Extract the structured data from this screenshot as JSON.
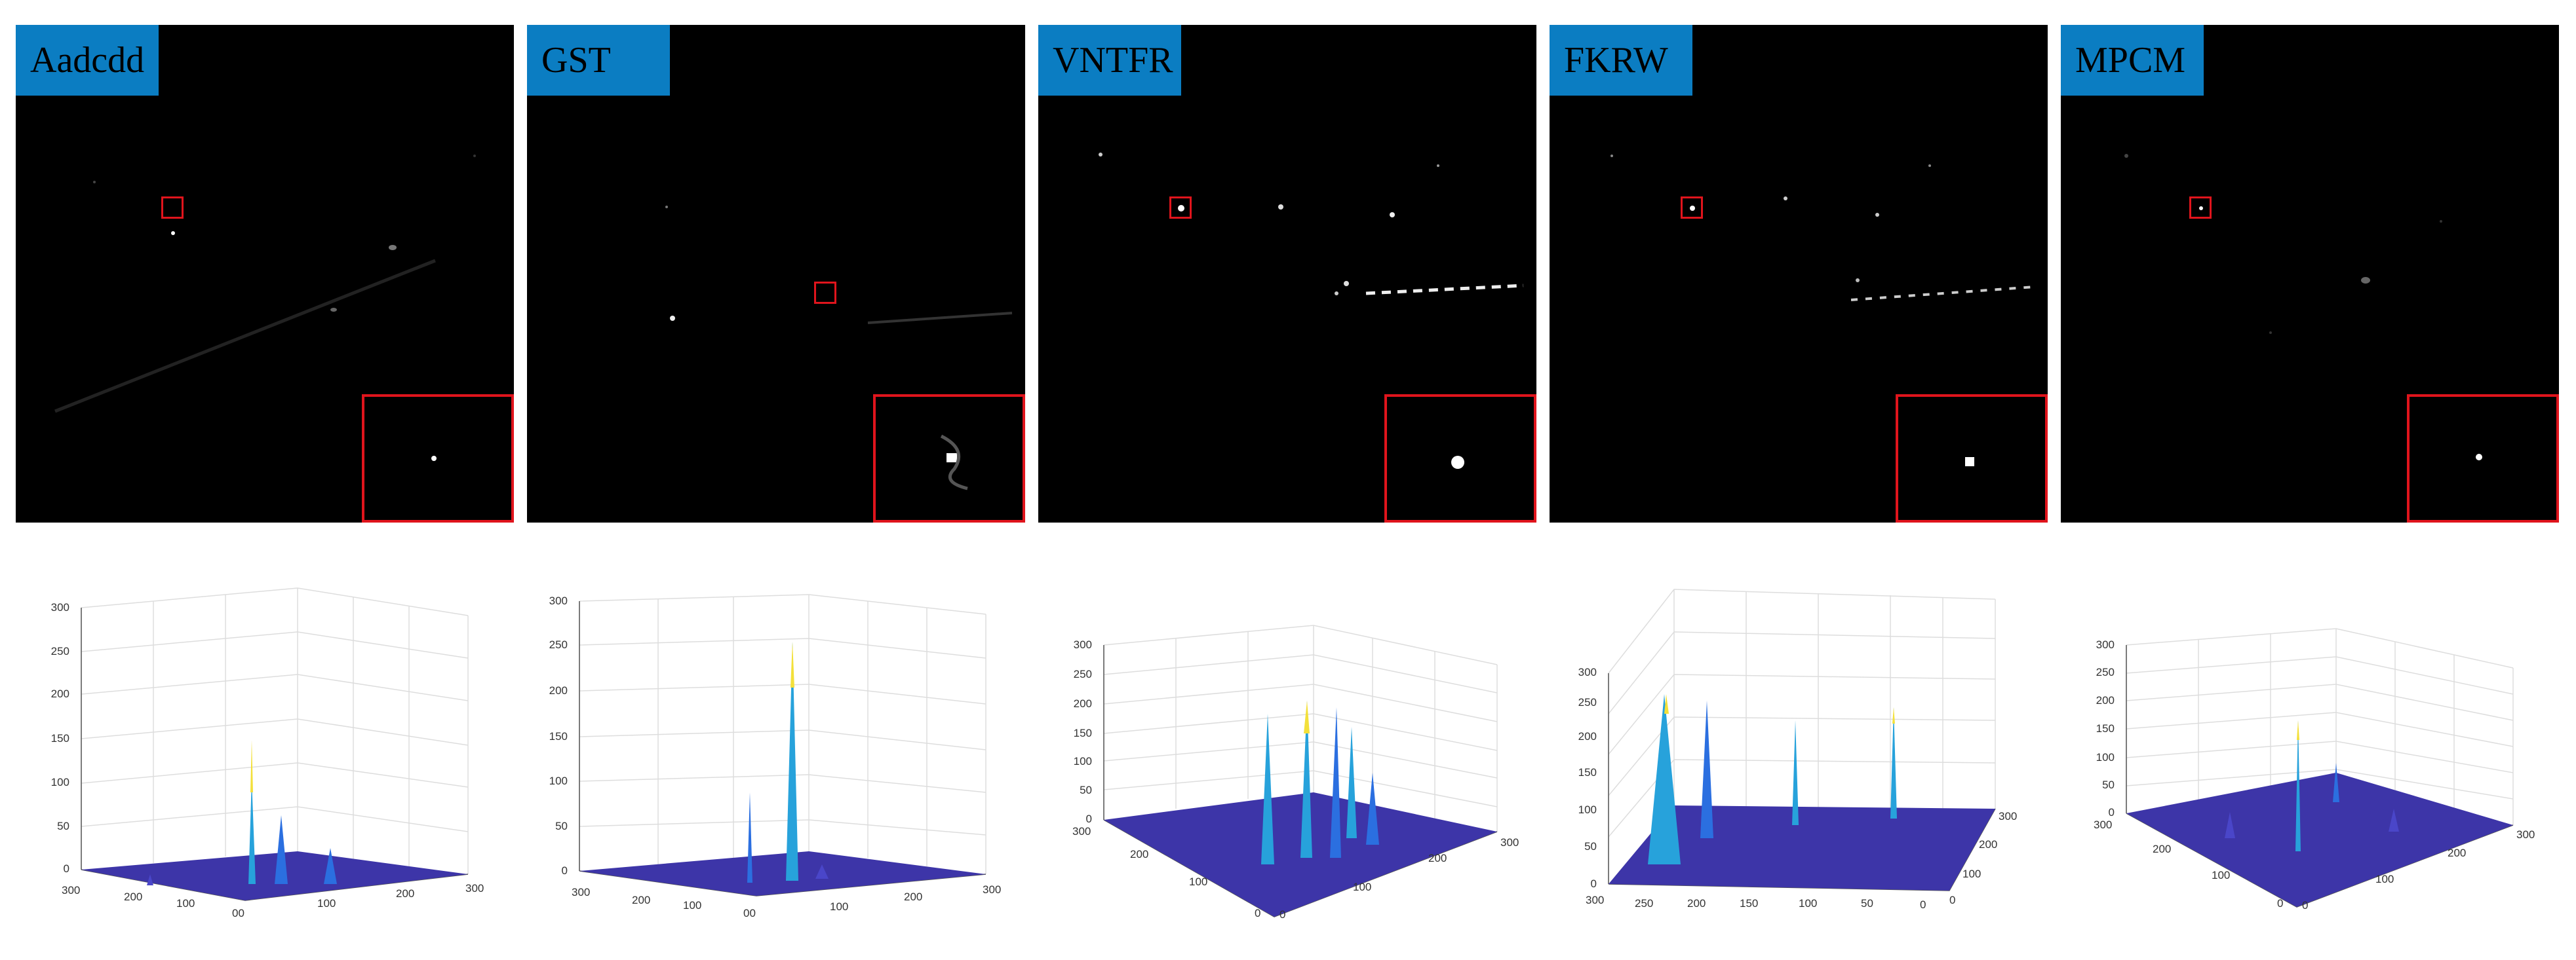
{
  "panels": [
    {
      "label": "Aadcdd"
    },
    {
      "label": "GST"
    },
    {
      "label": "VNTFR"
    },
    {
      "label": "FKRW"
    },
    {
      "label": "MPCM"
    }
  ],
  "surface_plots": [
    {
      "z_ticks": [
        "0",
        "50",
        "100",
        "150",
        "200",
        "250",
        "300"
      ],
      "x_ticks": [
        "300",
        "200",
        "100",
        "00"
      ],
      "y_ticks": [
        "100",
        "200",
        "300"
      ]
    },
    {
      "z_ticks": [
        "0",
        "50",
        "100",
        "150",
        "200",
        "250",
        "300"
      ],
      "x_ticks": [
        "300",
        "200",
        "100",
        "00"
      ],
      "y_ticks": [
        "100",
        "200",
        "300"
      ]
    },
    {
      "z_ticks": [
        "0",
        "50",
        "100",
        "150",
        "200",
        "250",
        "300"
      ],
      "x_ticks": [
        "300",
        "200",
        "100",
        "0"
      ],
      "y_ticks": [
        "0",
        "100",
        "200",
        "300"
      ]
    },
    {
      "z_ticks": [
        "0",
        "50",
        "100",
        "150",
        "200",
        "250",
        "300"
      ],
      "x_ticks": [
        "300",
        "250",
        "200",
        "150",
        "100",
        "50",
        "0"
      ],
      "y_ticks": [
        "0",
        "100",
        "200",
        "300"
      ]
    },
    {
      "z_ticks": [
        "0",
        "50",
        "100",
        "150",
        "200",
        "250",
        "300"
      ],
      "x_ticks": [
        "300",
        "200",
        "100",
        "0"
      ],
      "y_ticks": [
        "0",
        "100",
        "200",
        "300"
      ]
    }
  ],
  "colors": {
    "label_bg": "#0b7dc2",
    "marker": "#e0141c",
    "surface_base": "#3d35a8",
    "surface_peak": "#f3e03a"
  }
}
